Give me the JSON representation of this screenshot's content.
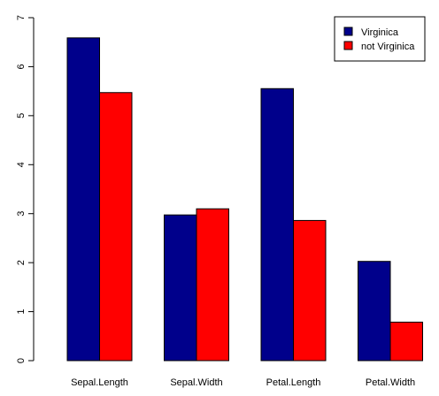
{
  "chart_data": {
    "type": "bar",
    "title": "",
    "xlabel": "",
    "ylabel": "",
    "categories": [
      "Sepal.Length",
      "Sepal.Width",
      "Petal.Length",
      "Petal.Width"
    ],
    "series": [
      {
        "name": "Virginica",
        "color": "#00008B",
        "values": [
          6.588,
          2.974,
          5.552,
          2.026
        ]
      },
      {
        "name": "not Virginica",
        "color": "#FF0000",
        "values": [
          5.471,
          3.099,
          2.861,
          0.786
        ]
      }
    ],
    "yticks": [
      0,
      1,
      2,
      3,
      4,
      5,
      6,
      7
    ],
    "ylim": [
      0,
      7
    ],
    "grid": false,
    "legend_position": "top-right",
    "bar_border_color": "#000000"
  }
}
